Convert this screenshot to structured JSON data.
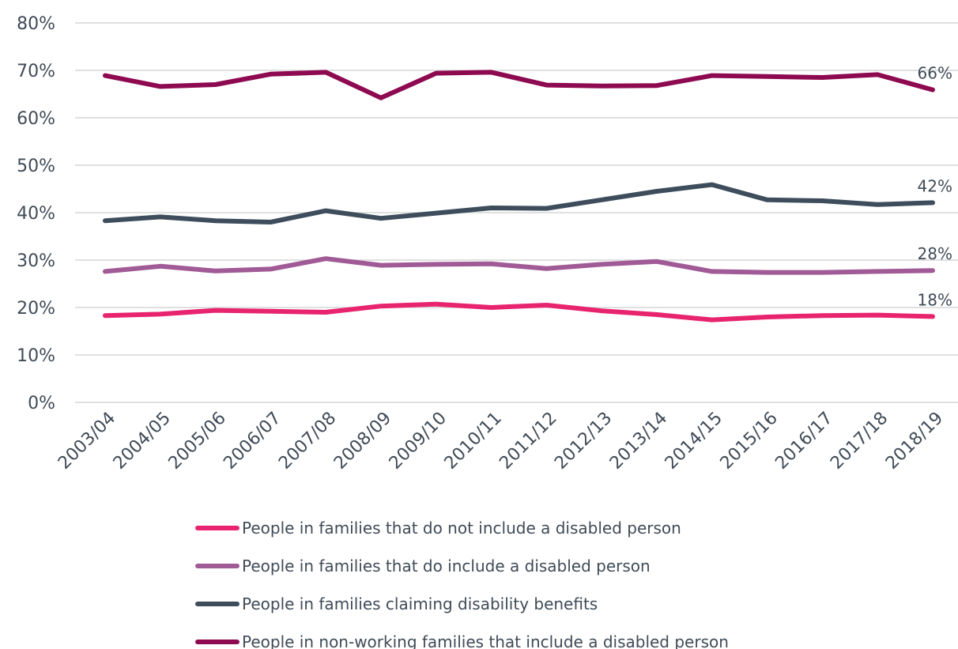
{
  "chart_data": {
    "type": "line",
    "x": [
      "2003/04",
      "2004/05",
      "2005/06",
      "2006/07",
      "2007/08",
      "2008/09",
      "2009/10",
      "2010/11",
      "2011/12",
      "2012/13",
      "2013/14",
      "2014/15",
      "2015/16",
      "2016/17",
      "2017/18",
      "2018/19"
    ],
    "yticks": [
      "0%",
      "10%",
      "20%",
      "30%",
      "40%",
      "50%",
      "60%",
      "70%",
      "80%"
    ],
    "ylim": [
      0,
      80
    ],
    "grid": true,
    "legend_position": "bottom",
    "series": [
      {
        "name": "People in families that do not include a disabled person",
        "color": "#e8246f",
        "values": [
          18.3,
          18.6,
          19.4,
          19.2,
          19.0,
          20.3,
          20.7,
          20.0,
          20.5,
          19.3,
          18.5,
          17.4,
          18.0,
          18.3,
          18.4,
          18.1
        ],
        "end_label": "18%"
      },
      {
        "name": "People in families that do include a disabled person",
        "color": "#a05a96",
        "values": [
          27.6,
          28.7,
          27.7,
          28.1,
          30.3,
          28.9,
          29.1,
          29.2,
          28.2,
          29.1,
          29.7,
          27.6,
          27.4,
          27.4,
          27.6,
          27.8
        ],
        "end_label": "28%"
      },
      {
        "name": "People in families claiming disability benefits",
        "color": "#3e4d5c",
        "values": [
          38.3,
          39.1,
          38.3,
          38.0,
          40.4,
          38.8,
          39.9,
          41.0,
          40.9,
          42.7,
          44.5,
          45.9,
          42.7,
          42.5,
          41.7,
          42.1
        ],
        "end_label": "42%"
      },
      {
        "name": "People in non-working families that include a disabled person",
        "color": "#8e0a50",
        "values": [
          68.9,
          66.6,
          67.0,
          69.2,
          69.6,
          64.2,
          69.4,
          69.6,
          66.9,
          66.7,
          66.8,
          68.9,
          68.7,
          68.5,
          69.1,
          65.9
        ],
        "end_label": "66%"
      }
    ]
  }
}
